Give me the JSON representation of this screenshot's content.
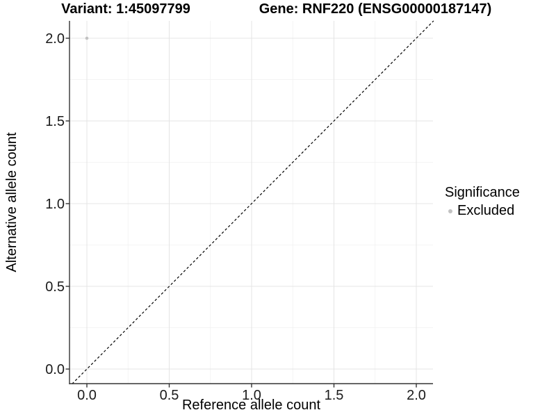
{
  "titles": {
    "left": "Variant: 1:45097799",
    "right": "Gene: RNF220 (ENSG00000187147)"
  },
  "chart_data": {
    "type": "scatter",
    "title": "Variant: 1:45097799 / Gene: RNF220 (ENSG00000187147)",
    "xlabel": "Reference allele count",
    "ylabel": "Alternative allele count",
    "xlim": [
      -0.105,
      2.105
    ],
    "ylim": [
      -0.09,
      2.105
    ],
    "x_ticks": {
      "values": [
        0,
        0.5,
        1,
        1.5,
        2
      ],
      "labels": [
        "0.0",
        "0.5",
        "1.0",
        "1.5",
        "2.0"
      ]
    },
    "y_ticks": {
      "values": [
        0,
        0.5,
        1,
        1.5,
        2
      ],
      "labels": [
        "0.0",
        "0.5",
        "1.0",
        "1.5",
        "2.0"
      ]
    },
    "grid": "major+minor",
    "identity_line": {
      "style": "dashed",
      "color": "#000000",
      "slope": 1,
      "intercept": 0
    },
    "series": [
      {
        "name": "Excluded",
        "color": "#c2c2c2",
        "points": [
          {
            "x": 0.0,
            "y": 2.0
          }
        ]
      }
    ],
    "legend": {
      "title": "Significance",
      "position": "right",
      "entries": [
        {
          "label": "Excluded",
          "color": "#c2c2c2"
        }
      ]
    },
    "colors": {
      "grid_major": "#e4e4e4",
      "grid_minor": "#f1f1f1",
      "axis_line": "#333333",
      "tick_label": "#1a1a1a",
      "point": "#c2c2c2"
    }
  }
}
